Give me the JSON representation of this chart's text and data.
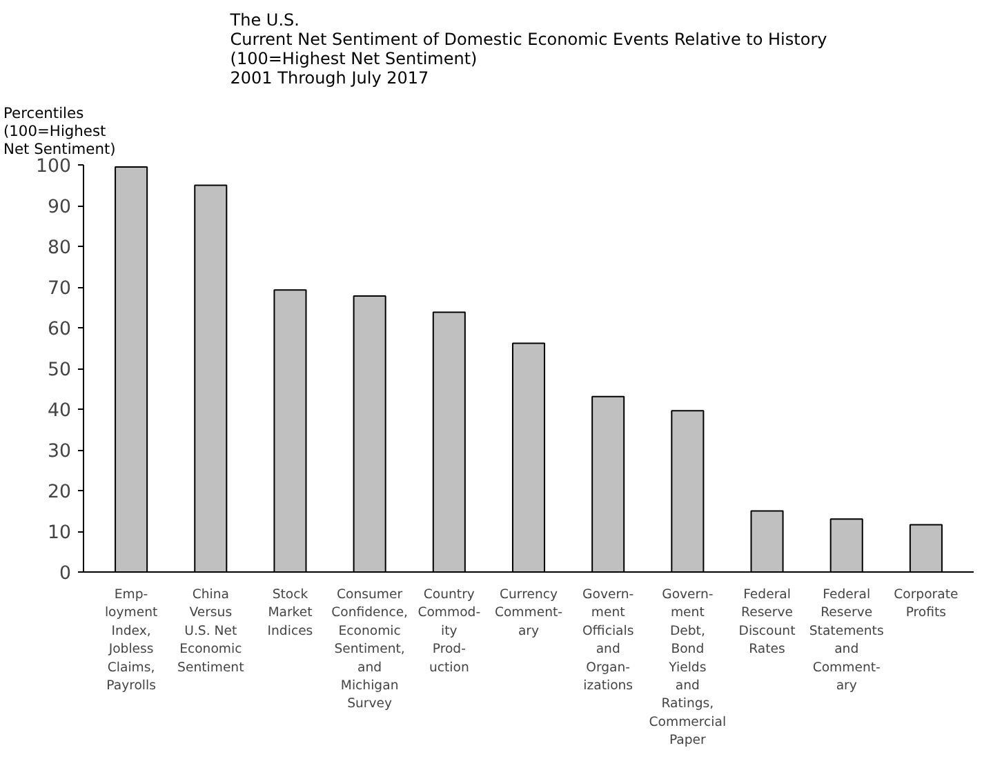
{
  "chart_data": {
    "type": "bar",
    "title": "The U.S.\nCurrent Net Sentiment of Domestic Economic Events Relative to History\n(100=Highest Net Sentiment)\n2001 Through July 2017",
    "ylabel": "Percentiles\n(100=Highest\nNet Sentiment)",
    "categories": [
      "Emp-\nloyment\nIndex,\nJobless\nClaims,\nPayrolls",
      "China\nVersus\nU.S. Net\nEconomic\nSentiment",
      "Stock\nMarket\nIndices",
      "Consumer\nConfidence,\nEconomic\nSentiment,\nand\nMichigan\nSurvey",
      "Country\nCommod-\nity\nProd-\nuction",
      "Currency\nComment-\nary",
      "Govern-\nment\nOfficials\nand\nOrgan-\nizations",
      "Govern-\nment\nDebt,\nBond\nYields\nand\nRatings,\nCommercial\nPaper",
      "Federal\nReserve\nDiscount\nRates",
      "Federal\nReserve\nStatements\nand\nComment-\nary",
      "Corporate\nProfits"
    ],
    "values": [
      99.5,
      95,
      69.3,
      67.8,
      63.8,
      56.2,
      43.1,
      39.6,
      15,
      13,
      11.6
    ],
    "color": "#c0c0c0",
    "ylim": [
      0,
      100
    ],
    "yticks": [
      0,
      10,
      20,
      30,
      40,
      50,
      60,
      70,
      80,
      90,
      100
    ],
    "grid": false
  }
}
